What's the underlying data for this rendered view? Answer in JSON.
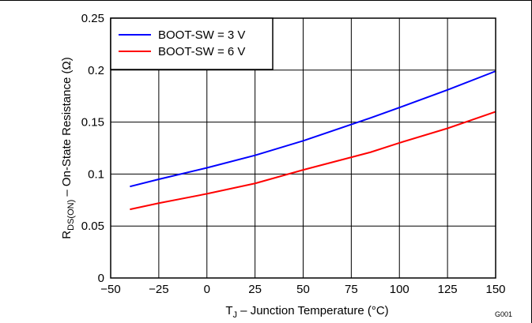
{
  "chart_data": {
    "type": "line",
    "xlabel_main": "T",
    "xlabel_sub": "J",
    "xlabel_rest": " – Junction Temperature (°C)",
    "ylabel_main": "R",
    "ylabel_sub": "DS(ON)",
    "ylabel_rest": " – On-State Resistance (Ω)",
    "xlim": [
      -50,
      150
    ],
    "ylim": [
      0,
      0.25
    ],
    "x_ticks": [
      -50,
      -25,
      0,
      25,
      50,
      75,
      100,
      125,
      150
    ],
    "x_tick_labels": [
      "−50",
      "−25",
      "0",
      "25",
      "50",
      "75",
      "100",
      "125",
      "150"
    ],
    "y_ticks": [
      0,
      0.05,
      0.1,
      0.15,
      0.2,
      0.25
    ],
    "y_tick_labels": [
      "0",
      "0.05",
      "0.1",
      "0.15",
      "0.2",
      "0.25"
    ],
    "grid": true,
    "legend_position": "top-left",
    "figure_id": "G001",
    "series": [
      {
        "name": "BOOT-SW = 3 V",
        "color": "#0000ff",
        "x": [
          -40,
          -25,
          0,
          25,
          50,
          85,
          100,
          125,
          150
        ],
        "y": [
          0.088,
          0.095,
          0.106,
          0.118,
          0.132,
          0.154,
          0.164,
          0.181,
          0.199
        ]
      },
      {
        "name": "BOOT-SW = 6 V",
        "color": "#ff0000",
        "x": [
          -40,
          -25,
          0,
          25,
          50,
          85,
          100,
          125,
          150
        ],
        "y": [
          0.066,
          0.072,
          0.081,
          0.091,
          0.104,
          0.121,
          0.13,
          0.144,
          0.16
        ]
      }
    ]
  }
}
